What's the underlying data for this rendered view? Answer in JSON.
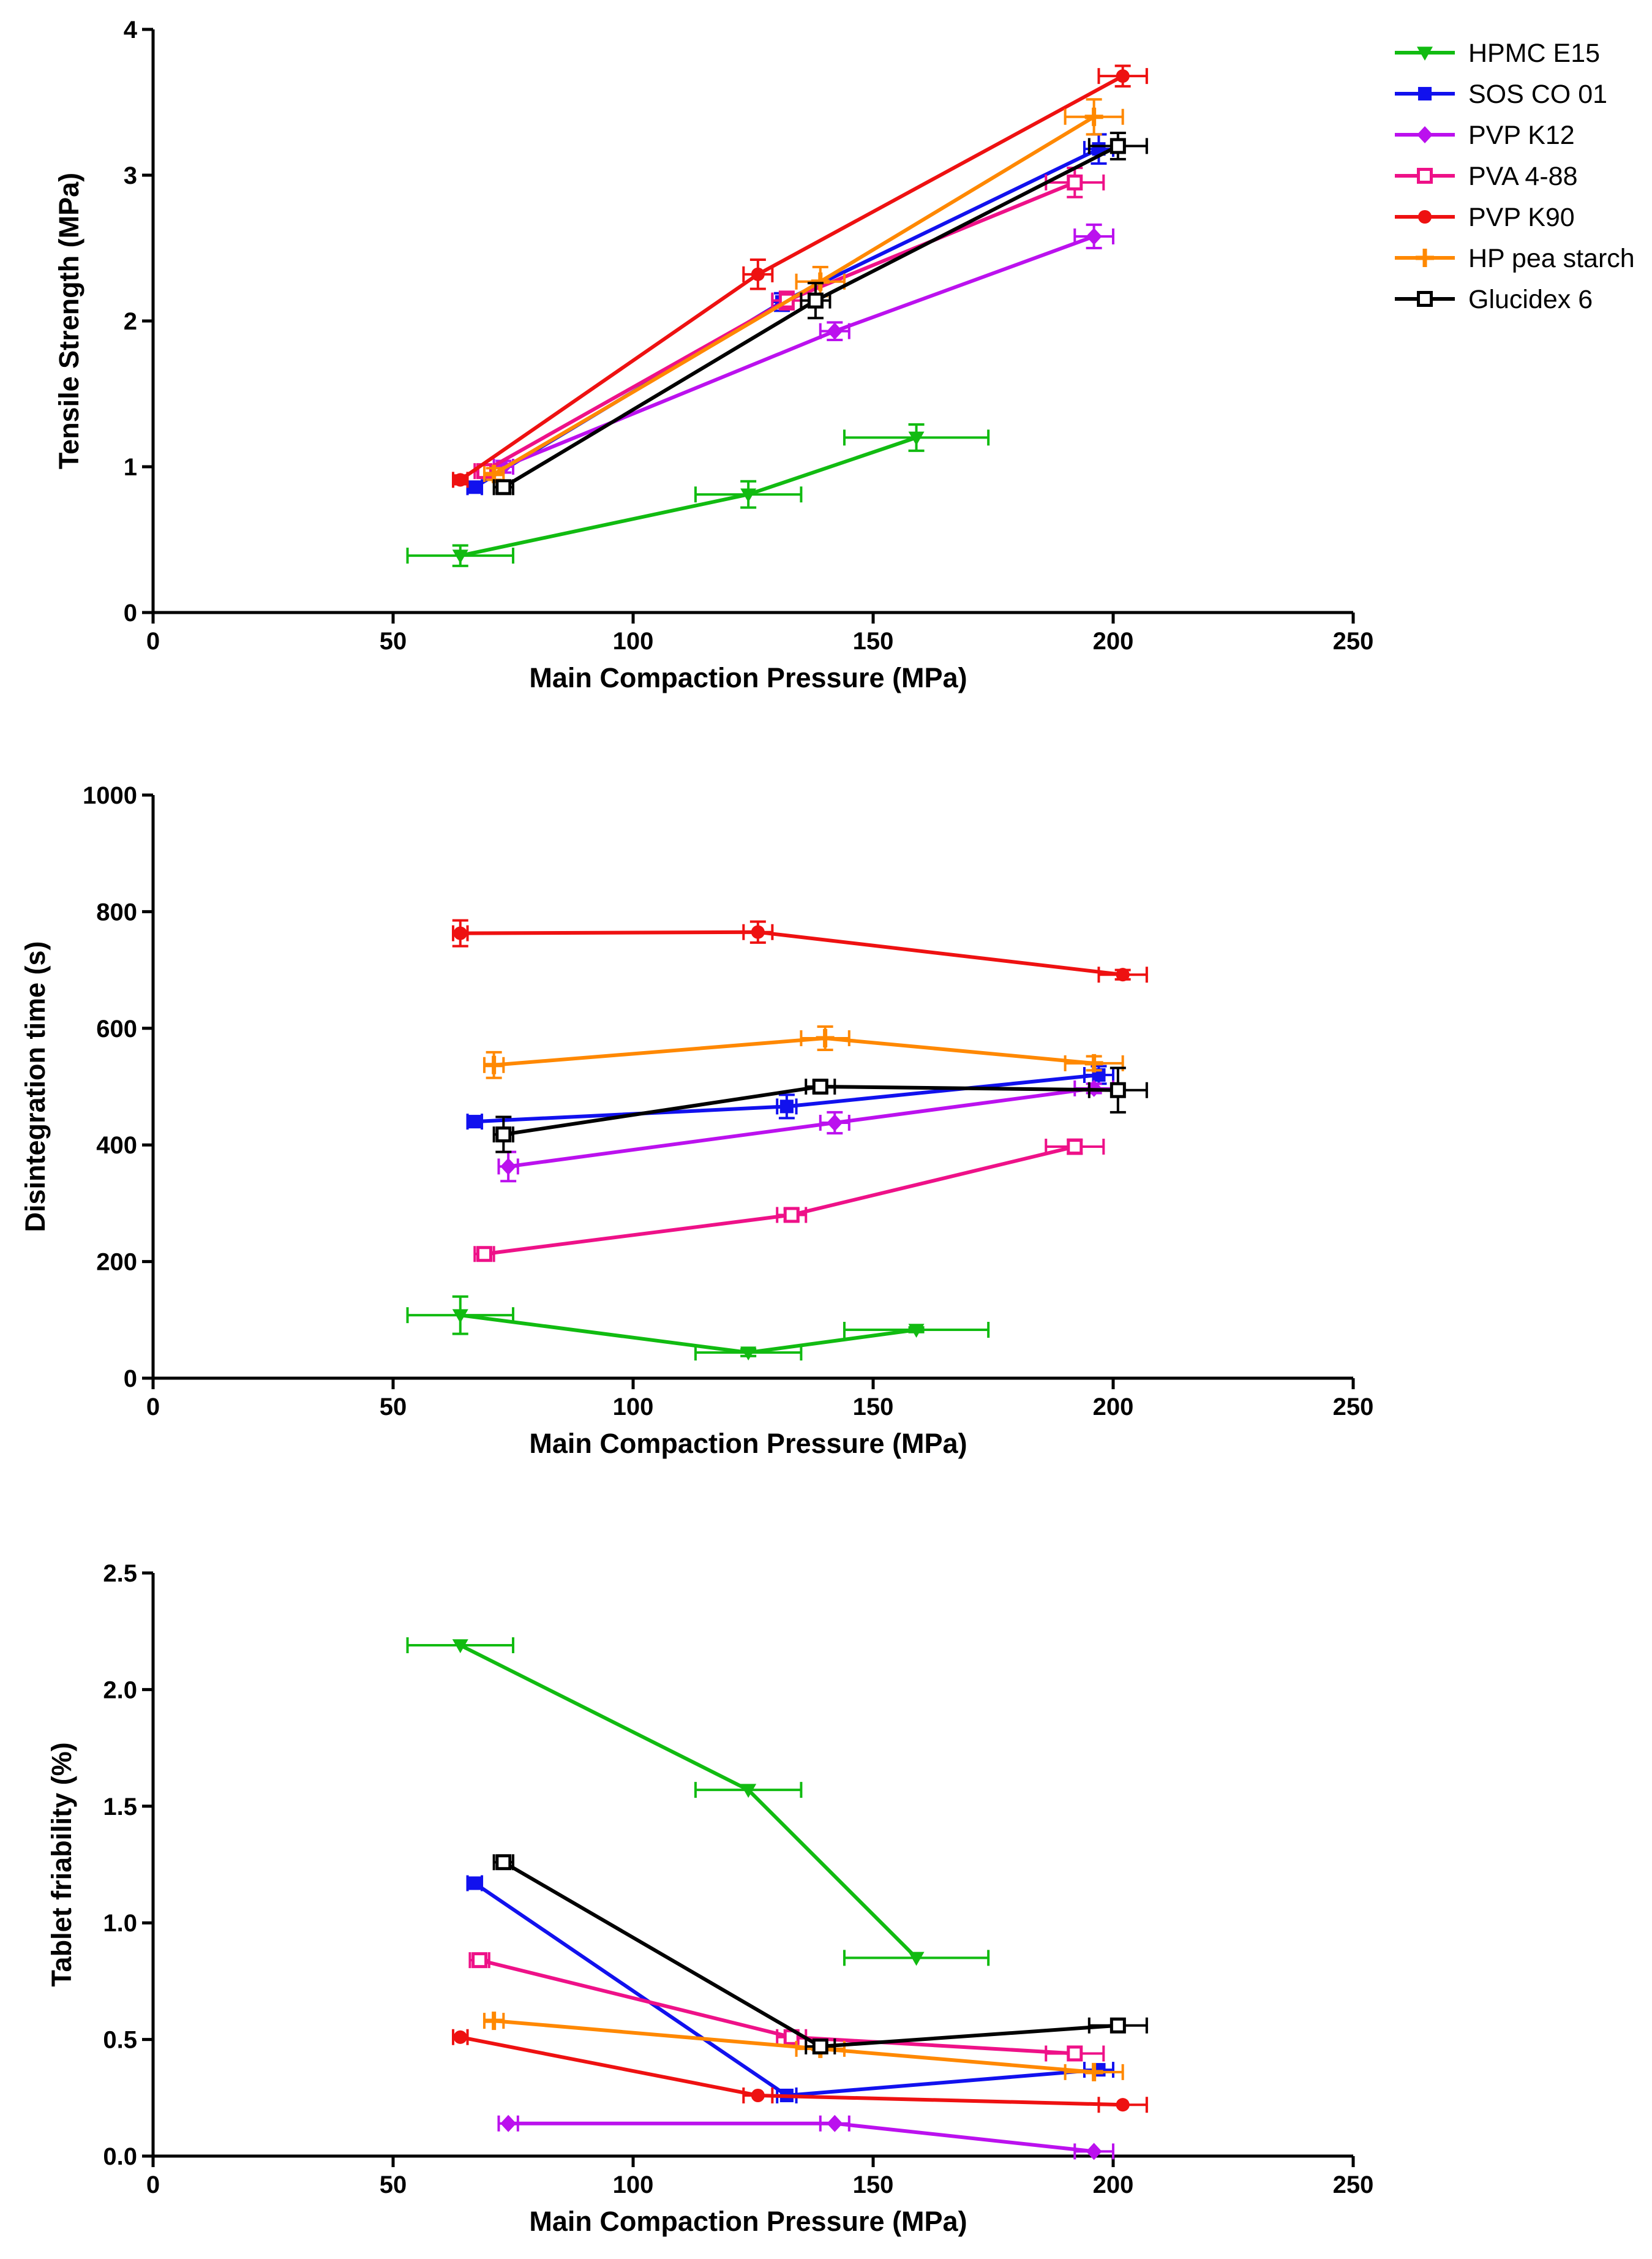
{
  "legend": [
    {
      "name": "HPMC E15",
      "color": "#11bb11",
      "marker": "triangle-down"
    },
    {
      "name": "SOS CO 01",
      "color": "#1111ee",
      "marker": "square"
    },
    {
      "name": "PVP K12",
      "color": "#bb11ee",
      "marker": "diamond"
    },
    {
      "name": "PVA 4-88",
      "color": "#ee1188",
      "marker": "square-open"
    },
    {
      "name": "PVP K90",
      "color": "#ee1111",
      "marker": "circle"
    },
    {
      "name": "HP pea starch",
      "color": "#ff8800",
      "marker": "plus"
    },
    {
      "name": "Glucidex 6",
      "color": "#000000",
      "marker": "square-open"
    }
  ],
  "chart_data": [
    {
      "type": "line",
      "xlabel": "Main Compaction Pressure (MPa)",
      "ylabel": "Tensile Strength (MPa)",
      "xlim": [
        0,
        250
      ],
      "ylim": [
        0,
        4
      ],
      "xticks": [
        0,
        50,
        100,
        150,
        200,
        250
      ],
      "yticks": [
        0,
        1,
        2,
        3,
        4
      ],
      "ytick_labels": [
        "0",
        "1",
        "2",
        "3",
        "4"
      ],
      "series": [
        {
          "name": "HPMC E15",
          "x": [
            64,
            124,
            159
          ],
          "y": [
            0.39,
            0.81,
            1.2
          ],
          "xerr": [
            11,
            11,
            15
          ],
          "yerr": [
            0.07,
            0.09,
            0.09
          ]
        },
        {
          "name": "SOS CO 01",
          "x": [
            67,
            131,
            197
          ],
          "y": [
            0.86,
            2.13,
            3.18
          ],
          "xerr": [
            1.5,
            2,
            3
          ],
          "yerr": [
            0.03,
            0.06,
            0.1
          ]
        },
        {
          "name": "PVP K12",
          "x": [
            73,
            142,
            196
          ],
          "y": [
            1.0,
            1.93,
            2.58
          ],
          "xerr": [
            2,
            3,
            4
          ],
          "yerr": [
            0.04,
            0.06,
            0.08
          ]
        },
        {
          "name": "PVA 4-88",
          "x": [
            69,
            132,
            192
          ],
          "y": [
            0.97,
            2.14,
            2.95
          ],
          "xerr": [
            2,
            3,
            6
          ],
          "yerr": [
            0.04,
            0.06,
            0.1
          ]
        },
        {
          "name": "PVP K90",
          "x": [
            64,
            126,
            202
          ],
          "y": [
            0.91,
            2.32,
            3.68
          ],
          "xerr": [
            1.5,
            3,
            5
          ],
          "yerr": [
            0.03,
            0.1,
            0.07
          ]
        },
        {
          "name": "HP pea starch",
          "x": [
            71,
            139,
            196
          ],
          "y": [
            0.95,
            2.27,
            3.4
          ],
          "xerr": [
            2,
            5,
            6
          ],
          "yerr": [
            0.04,
            0.1,
            0.12
          ]
        },
        {
          "name": "Glucidex 6",
          "x": [
            73,
            138,
            201
          ],
          "y": [
            0.86,
            2.14,
            3.2
          ],
          "xerr": [
            2,
            3,
            6
          ],
          "yerr": [
            0.04,
            0.12,
            0.09
          ]
        }
      ]
    },
    {
      "type": "line",
      "xlabel": "Main Compaction Pressure (MPa)",
      "ylabel": "Disintegration time (s)",
      "xlim": [
        0,
        250
      ],
      "ylim": [
        0,
        1000
      ],
      "xticks": [
        0,
        50,
        100,
        150,
        200,
        250
      ],
      "yticks": [
        0,
        200,
        400,
        600,
        800,
        1000
      ],
      "ytick_labels": [
        "0",
        "200",
        "400",
        "600",
        "800",
        "1000"
      ],
      "series": [
        {
          "name": "HPMC E15",
          "x": [
            64,
            124,
            159
          ],
          "y": [
            108,
            44,
            83
          ],
          "xerr": [
            11,
            11,
            15
          ],
          "yerr": [
            32,
            6,
            4
          ]
        },
        {
          "name": "SOS CO 01",
          "x": [
            67,
            132,
            197
          ],
          "y": [
            440,
            466,
            520
          ],
          "xerr": [
            1.5,
            2,
            3
          ],
          "yerr": [
            8,
            20,
            15
          ]
        },
        {
          "name": "PVP K12",
          "x": [
            74,
            142,
            196
          ],
          "y": [
            363,
            438,
            497
          ],
          "xerr": [
            2,
            3,
            4
          ],
          "yerr": [
            25,
            18,
            8
          ]
        },
        {
          "name": "PVA 4-88",
          "x": [
            69,
            133,
            192
          ],
          "y": [
            213,
            280,
            397
          ],
          "xerr": [
            2,
            3,
            6
          ],
          "yerr": [
            8,
            10,
            12
          ]
        },
        {
          "name": "PVP K90",
          "x": [
            64,
            126,
            202
          ],
          "y": [
            763,
            765,
            692
          ],
          "xerr": [
            1.5,
            3,
            5
          ],
          "yerr": [
            22,
            18,
            8
          ]
        },
        {
          "name": "HP pea starch",
          "x": [
            71,
            140,
            196
          ],
          "y": [
            537,
            583,
            540
          ],
          "xerr": [
            2,
            5,
            6
          ],
          "yerr": [
            22,
            20,
            12
          ]
        },
        {
          "name": "Glucidex 6",
          "x": [
            73,
            139,
            201
          ],
          "y": [
            418,
            500,
            494
          ],
          "xerr": [
            2,
            3,
            6
          ],
          "yerr": [
            30,
            10,
            38
          ]
        }
      ]
    },
    {
      "type": "line",
      "xlabel": "Main Compaction Pressure (MPa)",
      "ylabel": "Tablet friability (%)",
      "xlim": [
        0,
        250
      ],
      "ylim": [
        0,
        2.5
      ],
      "xticks": [
        0,
        50,
        100,
        150,
        200,
        250
      ],
      "yticks": [
        0,
        0.5,
        1,
        1.5,
        2,
        2.5
      ],
      "ytick_labels": [
        "0.0",
        "0.5",
        "1.0",
        "1.5",
        "2.0",
        "2.5"
      ],
      "series": [
        {
          "name": "HPMC E15",
          "x": [
            64,
            124,
            159
          ],
          "y": [
            2.19,
            1.57,
            0.85
          ],
          "xerr": [
            11,
            11,
            15
          ],
          "yerr": [
            0,
            0,
            0
          ]
        },
        {
          "name": "SOS CO 01",
          "x": [
            67,
            132,
            197
          ],
          "y": [
            1.17,
            0.26,
            0.37
          ],
          "xerr": [
            1.5,
            2,
            3
          ],
          "yerr": [
            0,
            0,
            0
          ]
        },
        {
          "name": "PVP K12",
          "x": [
            74,
            142,
            196
          ],
          "y": [
            0.14,
            0.14,
            0.02
          ],
          "xerr": [
            2,
            3,
            4
          ],
          "yerr": [
            0,
            0,
            0
          ]
        },
        {
          "name": "PVA 4-88",
          "x": [
            68,
            133,
            192
          ],
          "y": [
            0.84,
            0.51,
            0.44
          ],
          "xerr": [
            2,
            3,
            6
          ],
          "yerr": [
            0,
            0,
            0
          ]
        },
        {
          "name": "PVP K90",
          "x": [
            64,
            126,
            202
          ],
          "y": [
            0.51,
            0.26,
            0.22
          ],
          "xerr": [
            1.5,
            3,
            5
          ],
          "yerr": [
            0,
            0,
            0
          ]
        },
        {
          "name": "HP pea starch",
          "x": [
            71,
            139,
            196
          ],
          "y": [
            0.58,
            0.46,
            0.36
          ],
          "xerr": [
            2,
            5,
            6
          ],
          "yerr": [
            0,
            0,
            0
          ]
        },
        {
          "name": "Glucidex 6",
          "x": [
            73,
            139,
            201
          ],
          "y": [
            1.26,
            0.47,
            0.56
          ],
          "xerr": [
            2,
            3,
            6
          ],
          "yerr": [
            0,
            0,
            0
          ]
        }
      ]
    }
  ]
}
